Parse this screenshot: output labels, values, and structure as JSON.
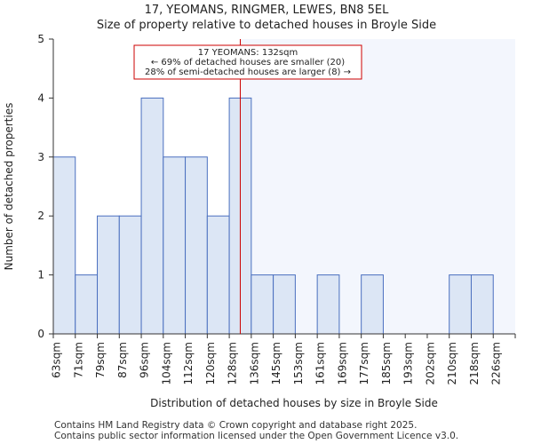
{
  "chart_data": {
    "type": "bar",
    "title": "17, YEOMANS, RINGMER, LEWES, BN8 5EL",
    "subtitle": "Size of property relative to detached houses in Broyle Side",
    "xlabel": "Distribution of detached houses by size in Broyle Side",
    "ylabel": "Number of detached properties",
    "categories": [
      "63sqm",
      "71sqm",
      "79sqm",
      "87sqm",
      "96sqm",
      "104sqm",
      "112sqm",
      "120sqm",
      "128sqm",
      "136sqm",
      "145sqm",
      "153sqm",
      "161sqm",
      "169sqm",
      "177sqm",
      "185sqm",
      "193sqm",
      "202sqm",
      "210sqm",
      "218sqm",
      "226sqm"
    ],
    "values": [
      3,
      1,
      2,
      2,
      4,
      3,
      3,
      2,
      4,
      1,
      1,
      0,
      1,
      0,
      1,
      0,
      0,
      0,
      1,
      1,
      0
    ],
    "ylim": [
      0,
      5
    ],
    "yticks": [
      0,
      1,
      2,
      3,
      4,
      5
    ],
    "property_value": 132,
    "property_bin_index": 8,
    "property_fraction_in_bin": 0.5,
    "annotation": {
      "line1": "17 YEOMANS: 132sqm",
      "line2": "← 69% of detached houses are smaller (20)",
      "line3": "28% of semi-detached houses are larger (8) →"
    },
    "colors": {
      "bar_fill": "#dce6f5",
      "bar_edge": "#4a6fbf",
      "marker": "#cc0000",
      "highlight": "#f3f6fd"
    }
  },
  "footer": {
    "line1": "Contains HM Land Registry data © Crown copyright and database right 2025.",
    "line2": "Contains public sector information licensed under the Open Government Licence v3.0."
  }
}
